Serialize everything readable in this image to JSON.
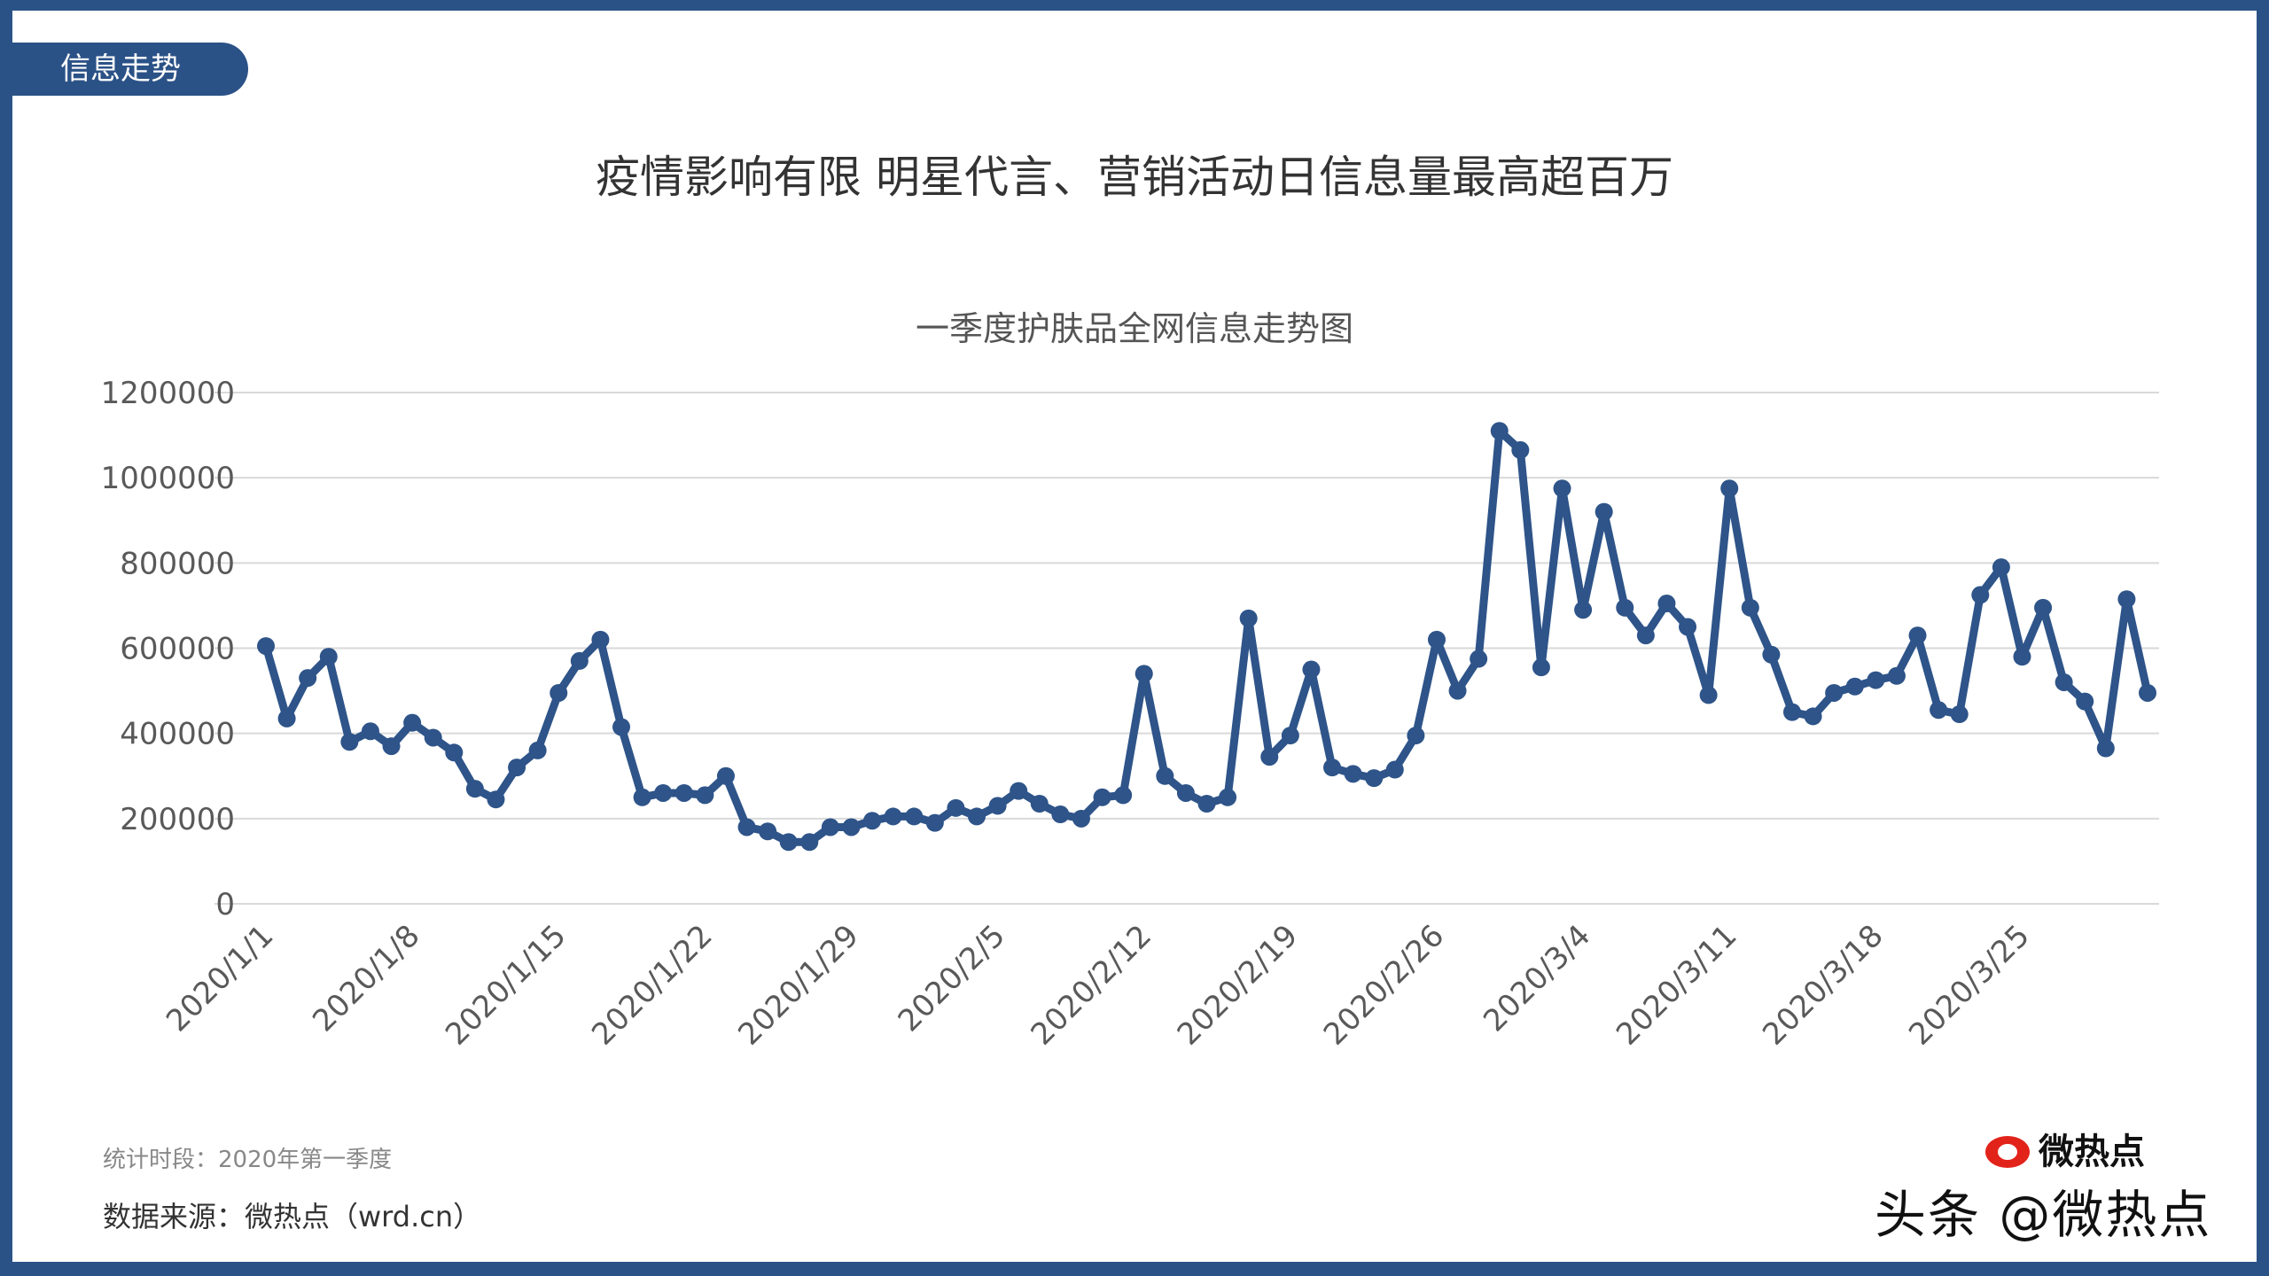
{
  "tag": "信息走势",
  "title": "疫情影响有限 明星代言、营销活动日信息量最高超百万",
  "footer": {
    "period": "统计时段：2020年第一季度",
    "source": "数据来源：微热点（wrd.cn）"
  },
  "watermark": {
    "text": "头条 @微热点",
    "logo_text": "微热点"
  },
  "colors": {
    "frame": "#2b5287",
    "series": "#2e5489",
    "grid": "#d9d9d9"
  },
  "chart_data": {
    "type": "line",
    "title": "一季度护肤品全网信息走势图",
    "xlabel": "",
    "ylabel": "",
    "ylim": [
      0,
      1200000
    ],
    "yticks": [
      "0",
      "200000",
      "400000",
      "600000",
      "800000",
      "1000000",
      "1200000"
    ],
    "x_start": "2020/1/1",
    "x_end": "2020/3/31",
    "xtick_labels": [
      "2020/1/1",
      "2020/1/8",
      "2020/1/15",
      "2020/1/22",
      "2020/1/29",
      "2020/2/5",
      "2020/2/12",
      "2020/2/19",
      "2020/2/26",
      "2020/3/4",
      "2020/3/11",
      "2020/3/18",
      "2020/3/25"
    ],
    "grid": true,
    "legend": "none",
    "markers": true,
    "values": [
      605000,
      435000,
      530000,
      580000,
      380000,
      405000,
      370000,
      425000,
      390000,
      355000,
      270000,
      245000,
      320000,
      360000,
      495000,
      570000,
      620000,
      415000,
      250000,
      260000,
      260000,
      255000,
      300000,
      180000,
      170000,
      145000,
      145000,
      180000,
      180000,
      195000,
      205000,
      205000,
      190000,
      225000,
      205000,
      230000,
      265000,
      235000,
      210000,
      200000,
      250000,
      255000,
      540000,
      300000,
      260000,
      235000,
      250000,
      670000,
      345000,
      395000,
      550000,
      320000,
      305000,
      295000,
      315000,
      395000,
      620000,
      500000,
      575000,
      1110000,
      1065000,
      555000,
      975000,
      690000,
      920000,
      695000,
      630000,
      705000,
      650000,
      490000,
      975000,
      695000,
      585000,
      450000,
      440000,
      495000,
      510000,
      525000,
      535000,
      630000,
      455000,
      445000,
      725000,
      790000,
      580000,
      695000,
      520000,
      475000,
      365000,
      715000,
      495000
    ]
  }
}
